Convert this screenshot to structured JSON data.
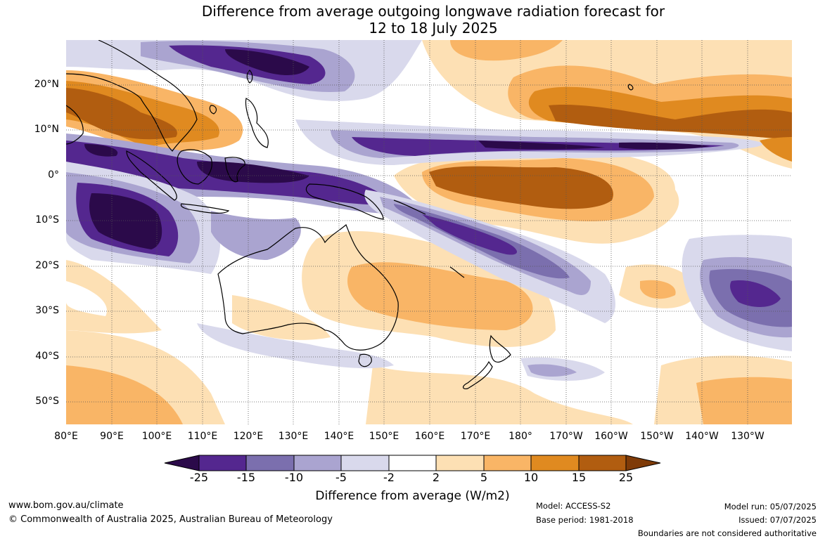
{
  "title": {
    "line1": "Difference from average outgoing longwave radiation forecast for",
    "line2": "12 to 18 July 2025"
  },
  "map": {
    "lat_labels": [
      "20°N",
      "10°N",
      "0°",
      "10°S",
      "20°S",
      "30°S",
      "40°S",
      "50°S"
    ],
    "lon_labels": [
      "80°E",
      "90°E",
      "100°E",
      "110°E",
      "120°E",
      "130°E",
      "140°E",
      "150°E",
      "160°E",
      "170°E",
      "180°",
      "170°W",
      "160°W",
      "150°W",
      "140°W",
      "130°W"
    ]
  },
  "colorbar": {
    "ticks": [
      "-25",
      "-15",
      "-10",
      "-5",
      "-2",
      "2",
      "5",
      "10",
      "15",
      "25"
    ],
    "colors": [
      "#2b0a4a",
      "#54278f",
      "#7b6fae",
      "#aaa4d0",
      "#d9d9ec",
      "#ffffff",
      "#fde0b4",
      "#f9b566",
      "#e08a20",
      "#b15d10",
      "#7f3b08"
    ],
    "caption": "Difference from average (W/m2)"
  },
  "footer": {
    "website": "www.bom.gov.au/climate",
    "copyright": "© Commonwealth of Australia 2025, Australian Bureau of Meteorology",
    "model": "Model: ACCESS-S2",
    "base_period": "Base period: 1981-2018",
    "model_run": "Model run: 05/07/2025",
    "issued": "Issued: 07/07/2025",
    "disclaimer": "Boundaries are not considered authoritative"
  }
}
